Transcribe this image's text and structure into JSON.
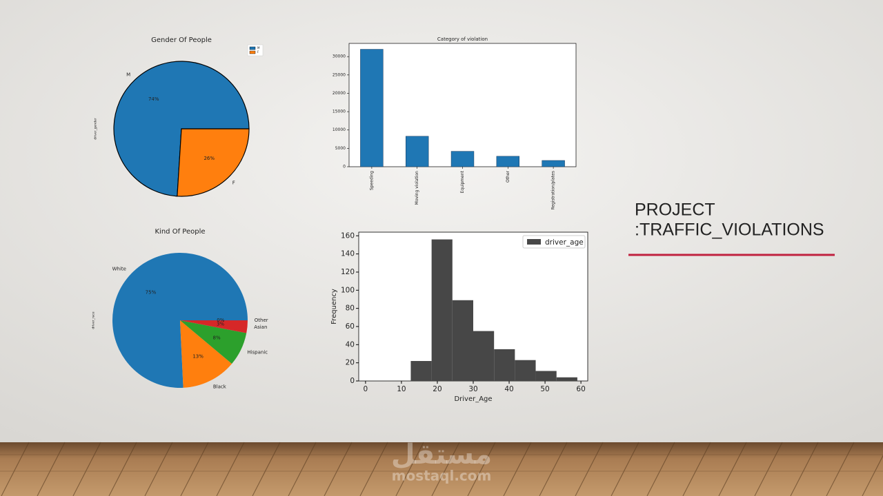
{
  "slide": {
    "title_lines": [
      "PROJECT",
      ":TRAFFIC_VIOLATIONS"
    ]
  },
  "watermark": {
    "arabic": "مستقل",
    "latin": "mostaql.com"
  },
  "chart_data": [
    {
      "type": "pie",
      "title": "Gender Of People",
      "ylabel": "driver_gender",
      "categories": [
        "M",
        "F"
      ],
      "values": [
        74,
        26
      ],
      "value_labels": [
        "74%",
        "26%"
      ],
      "colors": [
        "#1f77b4",
        "#ff7f0e"
      ],
      "edgecolor": "#000000",
      "legend": "upper right"
    },
    {
      "type": "bar",
      "title": "Category of violation",
      "categories": [
        "Speeding",
        "Moving violation",
        "Equipment",
        "Other",
        "Registration/plates"
      ],
      "values": [
        32000,
        8300,
        4200,
        2850,
        1700
      ],
      "color": "#1f77b4",
      "ylim": [
        0,
        33600
      ],
      "yticks": [
        0,
        5000,
        10000,
        15000,
        20000,
        25000,
        30000
      ]
    },
    {
      "type": "pie",
      "title": "Kind Of People",
      "ylabel": "driver_race",
      "categories": [
        "White",
        "Black",
        "Hispanic",
        "Asian",
        "Other"
      ],
      "values": [
        75,
        13,
        8,
        3,
        0
      ],
      "value_labels": [
        "75%",
        "13%",
        "8%",
        "3%",
        "0%"
      ],
      "colors": [
        "#1f77b4",
        "#ff7f0e",
        "#2ca02c",
        "#d62728",
        "#9467bd"
      ]
    },
    {
      "type": "histogram",
      "xlabel": "Driver_Age",
      "ylabel": "Frequency",
      "bins": [
        1,
        6.8,
        12.6,
        18.4,
        24.2,
        30,
        35.8,
        41.6,
        47.4,
        53.2,
        59
      ],
      "series": [
        {
          "name": "driver_age",
          "color": "#474747",
          "values": [
            0,
            0,
            22,
            156,
            89,
            55,
            35,
            23,
            11,
            4
          ]
        }
      ],
      "xlim": [
        -1.9,
        61.9
      ],
      "xticks": [
        0,
        10,
        20,
        30,
        40,
        50,
        60
      ],
      "ylim": [
        0,
        164
      ],
      "yticks": [
        0,
        20,
        40,
        60,
        80,
        100,
        120,
        140,
        160
      ],
      "legend": "upper right"
    }
  ]
}
